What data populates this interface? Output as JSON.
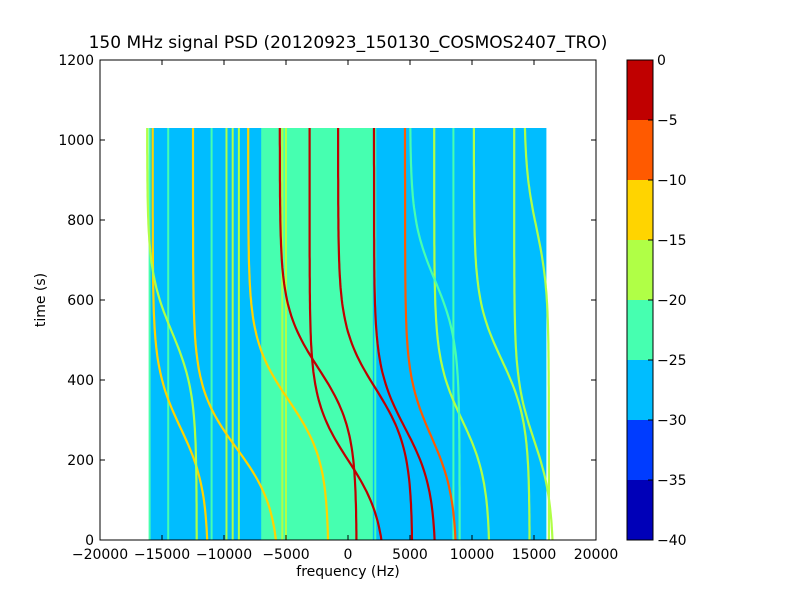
{
  "chart_data": {
    "type": "heatmap",
    "title": "150 MHz signal PSD (20120923_150130_COSMOS2407_TRO)",
    "xlabel": "frequency (Hz)",
    "ylabel": "time (s)",
    "xlim": [
      -20000,
      20000
    ],
    "ylim": [
      0,
      1200
    ],
    "x_ticks": [
      -20000,
      -15000,
      -10000,
      -5000,
      0,
      5000,
      10000,
      15000,
      20000
    ],
    "y_ticks": [
      0,
      200,
      400,
      600,
      800,
      1000
    ],
    "data_extent": {
      "x": [
        -16000,
        16000
      ],
      "y": [
        0,
        1030
      ]
    },
    "background_level": -27.5,
    "inner_band": {
      "x": [
        -7000,
        2000
      ],
      "level": -22.5
    },
    "vertical_lines": [
      {
        "x": -16000,
        "level": -22.5
      },
      {
        "x": -14500,
        "level": -22.5
      },
      {
        "x": -11000,
        "level": -22.5
      },
      {
        "x": -9800,
        "level": -17.5
      },
      {
        "x": -9300,
        "level": -17.5
      },
      {
        "x": -8800,
        "level": -17.5
      },
      {
        "x": -5300,
        "level": -17.5
      },
      {
        "x": -5000,
        "level": -17.5
      },
      {
        "x": 2200,
        "level": -22.5
      },
      {
        "x": 8500,
        "level": -22.5
      }
    ],
    "traces": [
      {
        "center": 0,
        "t0": 200,
        "span": 6200,
        "level": -2.5
      },
      {
        "center": 2200,
        "t0": 380,
        "span": 6000,
        "level": -2.5
      },
      {
        "center": 4600,
        "t0": 280,
        "span": 5000,
        "level": -2.5
      },
      {
        "center": -2400,
        "t0": 430,
        "span": 6200,
        "level": -2.5
      },
      {
        "center": 6700,
        "t0": 260,
        "span": 4200,
        "level": -7.5
      },
      {
        "center": -4800,
        "t0": 350,
        "span": 6500,
        "level": -12.5
      },
      {
        "center": -9000,
        "t0": 230,
        "span": 7000,
        "level": -12.5
      },
      {
        "center": -13500,
        "t0": 280,
        "span": 4500,
        "level": -12.5
      },
      {
        "center": -14200,
        "t0": 520,
        "span": 4000,
        "level": -17.5
      },
      {
        "center": 9200,
        "t0": 300,
        "span": 4500,
        "level": -17.5
      },
      {
        "center": 12400,
        "t0": 450,
        "span": 4500,
        "level": -17.5
      },
      {
        "center": 15000,
        "t0": 250,
        "span": 3200,
        "level": -17.5
      },
      {
        "center": 7000,
        "t0": 650,
        "span": 4000,
        "level": -22.5
      },
      {
        "center": 15200,
        "t0": 780,
        "span": 2000,
        "level": -17.5
      }
    ],
    "colorbar": {
      "levels": [
        {
          "low": -40,
          "high": -35,
          "color": "#0000b8"
        },
        {
          "low": -35,
          "high": -30,
          "color": "#003cff"
        },
        {
          "low": -30,
          "high": -25,
          "color": "#00bdff"
        },
        {
          "low": -25,
          "high": -20,
          "color": "#46ffb0"
        },
        {
          "low": -20,
          "high": -15,
          "color": "#b0ff46"
        },
        {
          "low": -15,
          "high": -10,
          "color": "#ffd400"
        },
        {
          "low": -10,
          "high": -5,
          "color": "#ff5a00"
        },
        {
          "low": -5,
          "high": 0,
          "color": "#c00000"
        }
      ],
      "ticks": [
        0,
        -5,
        -10,
        -15,
        -20,
        -25,
        -30,
        -35,
        -40
      ]
    }
  }
}
